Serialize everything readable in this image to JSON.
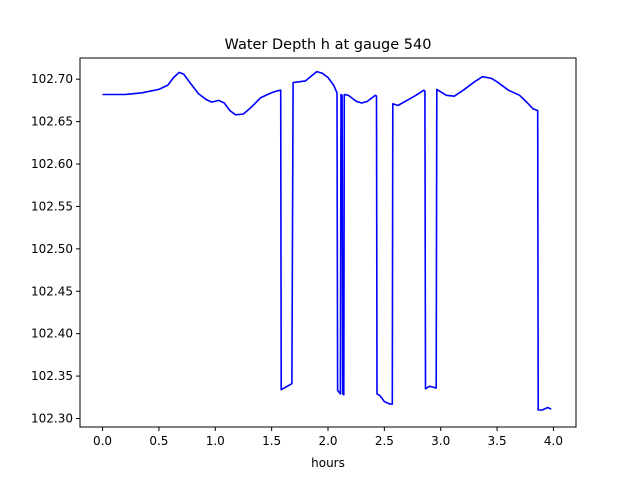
{
  "chart_data": {
    "type": "line",
    "title": "Water Depth h at gauge 540",
    "xlabel": "hours",
    "ylabel": "",
    "xlim": [
      -0.2,
      4.2
    ],
    "ylim": [
      102.29,
      102.725
    ],
    "xticks": [
      0.0,
      0.5,
      1.0,
      1.5,
      2.0,
      2.5,
      3.0,
      3.5,
      4.0
    ],
    "xtick_labels": [
      "0.0",
      "0.5",
      "1.0",
      "1.5",
      "2.0",
      "2.5",
      "3.0",
      "3.5",
      "4.0"
    ],
    "yticks": [
      102.3,
      102.35,
      102.4,
      102.45,
      102.5,
      102.55,
      102.6,
      102.65,
      102.7
    ],
    "ytick_labels": [
      "102.30",
      "102.35",
      "102.40",
      "102.45",
      "102.50",
      "102.55",
      "102.60",
      "102.65",
      "102.70"
    ],
    "grid": false,
    "series": [
      {
        "color": "#0000ff",
        "x": [
          0.0,
          0.2,
          0.35,
          0.5,
          0.58,
          0.63,
          0.68,
          0.72,
          0.78,
          0.85,
          0.92,
          0.97,
          1.03,
          1.08,
          1.13,
          1.18,
          1.25,
          1.32,
          1.4,
          1.48,
          1.54,
          1.58,
          1.585,
          1.68,
          1.69,
          1.8,
          1.9,
          1.95,
          2.0,
          2.05,
          2.08,
          2.085,
          2.11,
          2.115,
          2.125,
          2.13,
          2.14,
          2.145,
          2.18,
          2.25,
          2.3,
          2.35,
          2.42,
          2.43,
          2.435,
          2.46,
          2.5,
          2.55,
          2.57,
          2.575,
          2.62,
          2.7,
          2.78,
          2.85,
          2.86,
          2.865,
          2.9,
          2.96,
          2.965,
          3.05,
          3.12,
          3.2,
          3.3,
          3.37,
          3.45,
          3.5,
          3.6,
          3.7,
          3.77,
          3.82,
          3.86,
          3.865,
          3.9,
          3.95,
          3.98
        ],
        "y": [
          102.682,
          102.682,
          102.684,
          102.688,
          102.693,
          102.702,
          102.708,
          102.706,
          102.695,
          102.683,
          102.676,
          102.673,
          102.675,
          102.672,
          102.663,
          102.658,
          102.659,
          102.667,
          102.678,
          102.683,
          102.686,
          102.687,
          102.334,
          102.341,
          102.696,
          102.698,
          102.709,
          102.707,
          102.702,
          102.693,
          102.684,
          102.333,
          102.329,
          102.682,
          102.681,
          102.329,
          102.328,
          102.682,
          102.681,
          102.674,
          102.672,
          102.674,
          102.681,
          102.68,
          102.329,
          102.327,
          102.32,
          102.317,
          102.317,
          102.671,
          102.669,
          102.675,
          102.681,
          102.687,
          102.686,
          102.335,
          102.338,
          102.336,
          102.688,
          102.681,
          102.68,
          102.687,
          102.697,
          102.703,
          102.701,
          102.697,
          102.687,
          102.681,
          102.672,
          102.665,
          102.663,
          102.31,
          102.31,
          102.313,
          102.311
        ]
      }
    ]
  }
}
